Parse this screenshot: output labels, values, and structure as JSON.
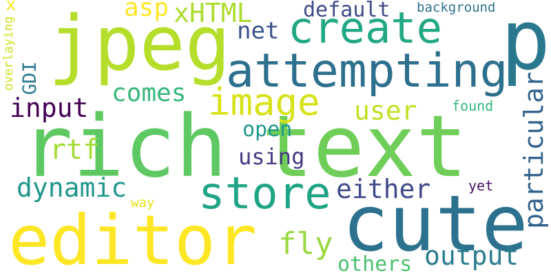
{
  "words": {
    "rich": {
      "text": "rich",
      "color": "#5ec962"
    },
    "text": {
      "text": "text",
      "color": "#6ece58"
    },
    "jpeg": {
      "text": "jpeg",
      "color": "#b5de2b"
    },
    "p": {
      "text": "p",
      "color": "#2a788e"
    },
    "editor": {
      "text": "editor",
      "color": "#fde725"
    },
    "cute": {
      "text": "cute",
      "color": "#2c728e"
    },
    "attempting": {
      "text": "attempting",
      "color": "#2d708e"
    },
    "create": {
      "text": "create",
      "color": "#22a884"
    },
    "store": {
      "text": "store",
      "color": "#20a486"
    },
    "image": {
      "text": "image",
      "color": "#d8e219"
    },
    "particular": {
      "text": "particular",
      "color": "#33638d"
    },
    "comes": {
      "text": "comes",
      "color": "#35b779"
    },
    "input": {
      "text": "input",
      "color": "#440154"
    },
    "user": {
      "text": "user",
      "color": "#c2df23"
    },
    "net": {
      "text": "net",
      "color": "#3b528b"
    },
    "xHTML": {
      "text": "xHTML",
      "color": "#addc30"
    },
    "asp": {
      "text": "asp",
      "color": "#fde725"
    },
    "default": {
      "text": "default",
      "color": "#3e4a89"
    },
    "background": {
      "text": "background",
      "color": "#2c728e"
    },
    "GDI": {
      "text": "GDI",
      "color": "#2a788e"
    },
    "overlaying": {
      "text": "overlaying",
      "color": "#d0e11c"
    },
    "x": {
      "text": "x",
      "color": "#fde725"
    },
    "rtf": {
      "text": "rtf",
      "color": "#a5db36"
    },
    "open": {
      "text": "open",
      "color": "#1f988b"
    },
    "using": {
      "text": "using",
      "color": "#443983"
    },
    "found": {
      "text": "found",
      "color": "#35b779"
    },
    "dynamic": {
      "text": "dynamic",
      "color": "#1f968b"
    },
    "either": {
      "text": "either",
      "color": "#3e4989"
    },
    "yet": {
      "text": "yet",
      "color": "#471365"
    },
    "way": {
      "text": "way",
      "color": "#e5e419"
    },
    "fly": {
      "text": "fly",
      "color": "#98d83e"
    },
    "others": {
      "text": "others",
      "color": "#4ac16d"
    },
    "output": {
      "text": "output",
      "color": "#287c8e"
    }
  }
}
